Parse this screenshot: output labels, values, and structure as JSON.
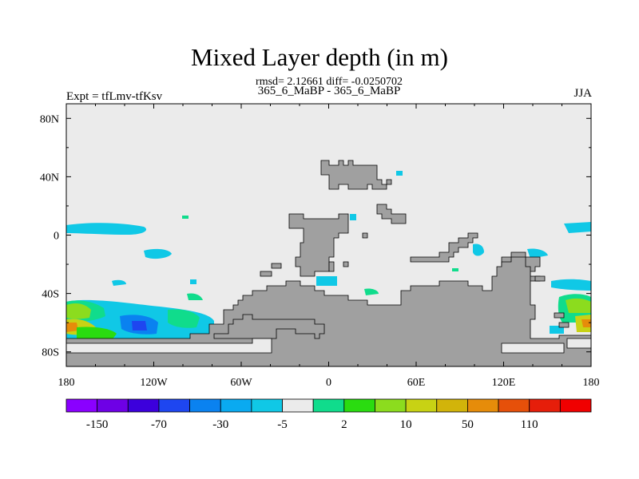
{
  "chart_data": {
    "type": "heatmap",
    "title": "Mixed Layer depth (in m)",
    "subtitle": "rmsd= 2.12661 diff= -0.0250702",
    "center_label": "365_6_MaBP - 365_6_MaBP",
    "left_label": "Expt = tfLmv-tfKsv",
    "right_label": "JJA",
    "x_ticks": [
      {
        "value": -180,
        "label": "180"
      },
      {
        "value": -120,
        "label": "120W"
      },
      {
        "value": -60,
        "label": "60W"
      },
      {
        "value": 0,
        "label": "0"
      },
      {
        "value": 60,
        "label": "60E"
      },
      {
        "value": 120,
        "label": "120E"
      },
      {
        "value": 180,
        "label": "180"
      }
    ],
    "y_ticks": [
      {
        "value": 80,
        "label": "80N"
      },
      {
        "value": 40,
        "label": "40N"
      },
      {
        "value": 0,
        "label": "0"
      },
      {
        "value": -40,
        "label": "40S"
      },
      {
        "value": -80,
        "label": "80S"
      }
    ],
    "xlim": [
      -180,
      180
    ],
    "ylim": [
      -90,
      90
    ],
    "colorbar": {
      "labels": [
        "-150",
        "-70",
        "-30",
        "-5",
        "2",
        "10",
        "50",
        "110"
      ],
      "colors": [
        "#8a00ff",
        "#6e00e6",
        "#3c00dc",
        "#1e46f0",
        "#0a82f0",
        "#0aaaf0",
        "#10c8e6",
        "#ebebeb",
        "#10dc8c",
        "#2adc10",
        "#8cdc1e",
        "#c8d214",
        "#d2b40a",
        "#e68c0a",
        "#e6500a",
        "#e61e0a",
        "#f00000"
      ]
    },
    "land_color": "#a0a0a0",
    "zero_color": "#ebebeb"
  }
}
